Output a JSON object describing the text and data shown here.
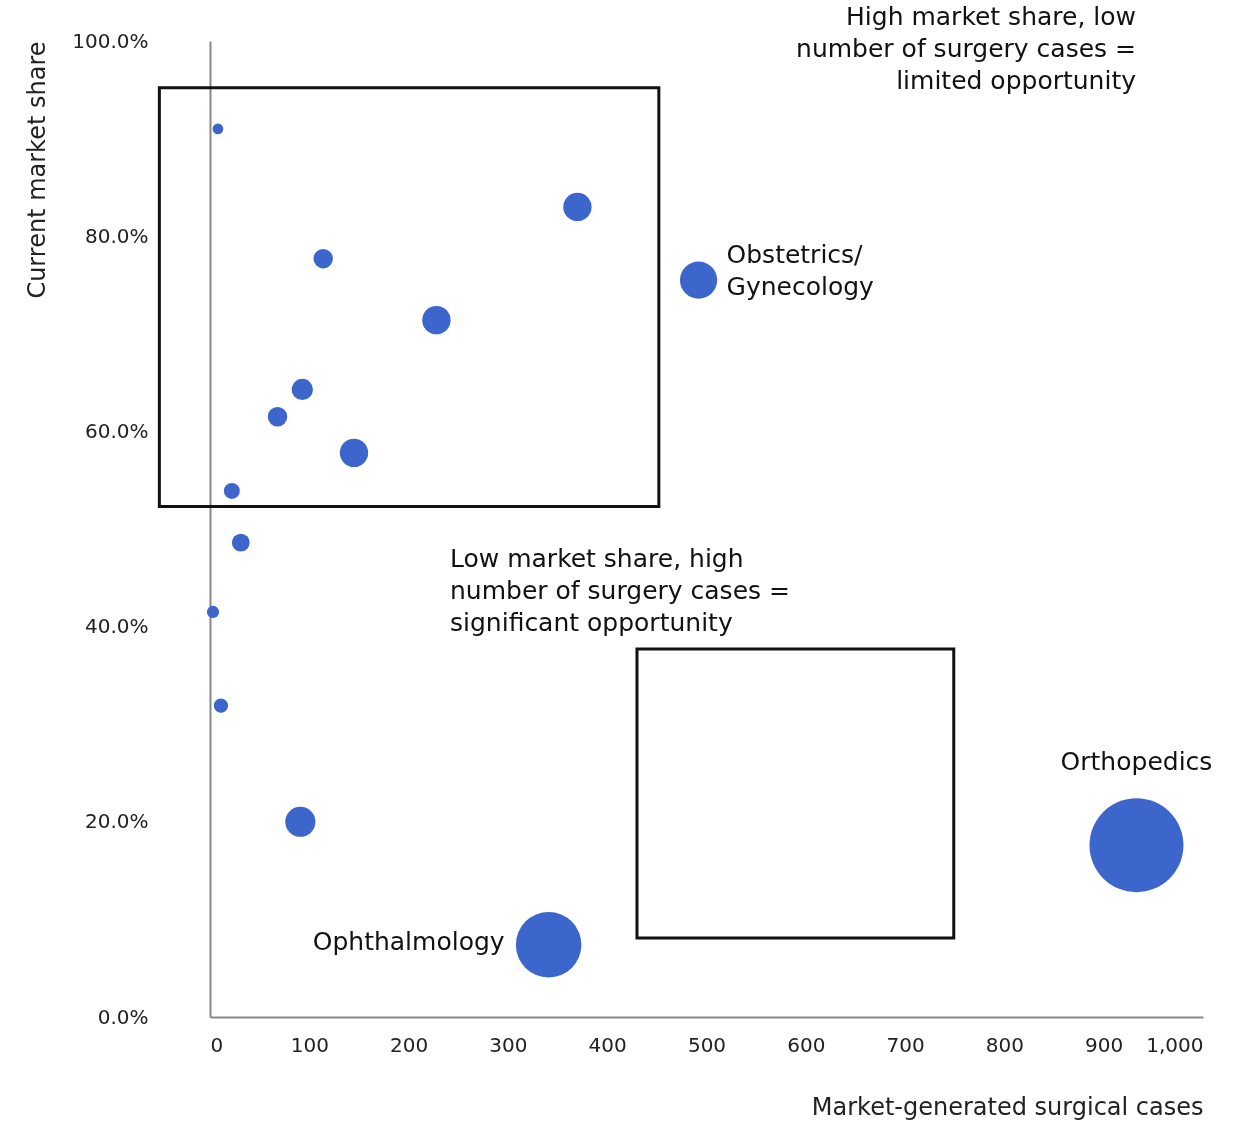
{
  "chart_data": {
    "type": "bubble",
    "xlabel": "Market-generated surgical cases",
    "ylabel": "Current market share",
    "x": [
      8,
      370,
      114,
      492,
      228,
      93,
      68,
      145,
      22,
      31,
      3,
      11,
      91,
      341,
      933
    ],
    "series": [
      {
        "color": "#3c66cc",
        "values": [
          91.0,
          83.0,
          77.7,
          75.5,
          71.4,
          64.3,
          61.5,
          57.8,
          53.9,
          48.6,
          41.5,
          31.9,
          20.0,
          7.4,
          17.6
        ],
        "sizes": [
          0.013,
          0.091,
          0.043,
          0.157,
          0.091,
          0.051,
          0.043,
          0.091,
          0.029,
          0.036,
          0.017,
          0.023,
          0.103,
          0.487,
          1
        ]
      }
    ],
    "xlim": [
      0,
      1000
    ],
    "xticks": [
      0,
      100,
      200,
      300,
      400,
      500,
      600,
      700,
      800,
      900,
      {
        "value": 1000,
        "label": "1,000"
      }
    ],
    "ylim": [
      0,
      100
    ],
    "yticks": [
      {
        "value": 0,
        "label": "0.0%"
      },
      {
        "value": 20,
        "label": "20.0%"
      },
      {
        "value": 40,
        "label": "40.0%"
      },
      {
        "value": 60,
        "label": "60.0%"
      },
      {
        "value": 80,
        "label": "80.0%"
      },
      {
        "value": 100,
        "label": "100.0%"
      }
    ],
    "grid": false,
    "legend": false,
    "annotations": [
      "High market share, low\nnumber of surgery cases =\nlimited opportunity",
      "Low market share, high\nnumber of surgery cases =\nsignificant opportunity",
      {
        "text": "Obstetrics/\nGynecology",
        "x": 492,
        "y": 75.5
      },
      {
        "text": "Orthopedics",
        "x": 933,
        "y": 17.6
      },
      {
        "text": "Ophthalmology",
        "x": 341,
        "y": 7.4
      }
    ]
  }
}
